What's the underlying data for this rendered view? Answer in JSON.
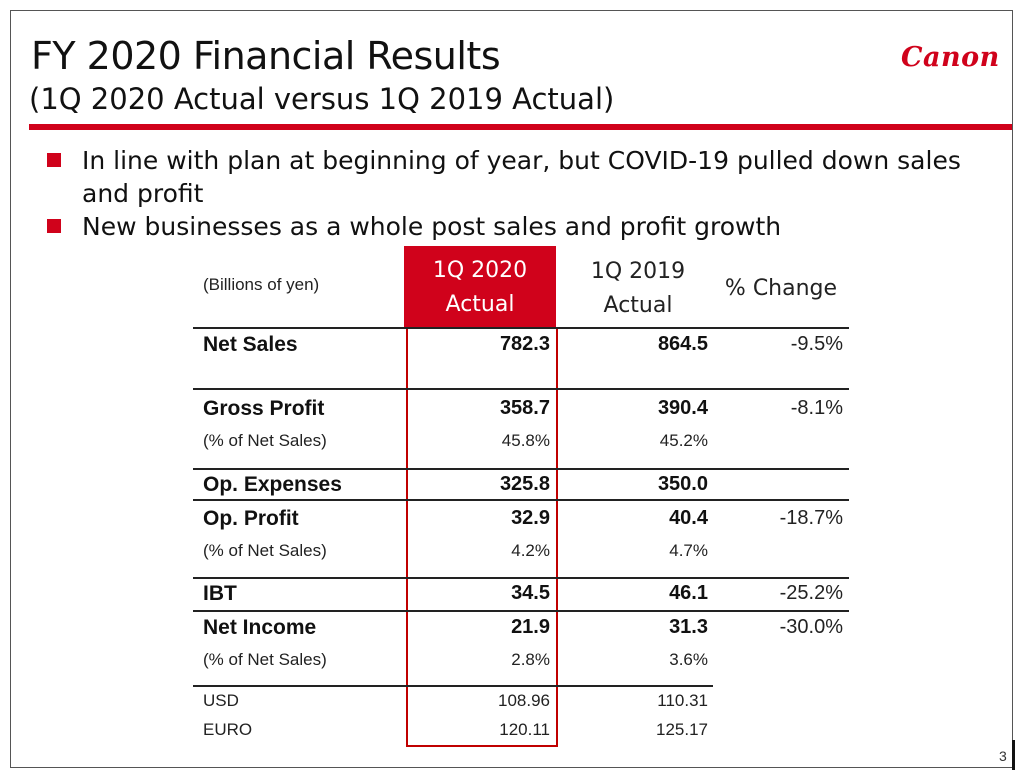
{
  "slide": {
    "title": "FY 2020 Financial Results",
    "subtitle": "(1Q 2020 Actual versus 1Q 2019 Actual)",
    "logo_text": "Canon",
    "accent_color": "#d0021b",
    "page_number": "3"
  },
  "bullets": [
    "In line with plan at beginning of year, but COVID-19 pulled down sales and profit",
    "New businesses as a whole post sales and profit growth"
  ],
  "table": {
    "units": "(Billions of yen)",
    "headers": {
      "col1_line1": "1Q 2020",
      "col1_line2": "Actual",
      "col2_line1": "1Q 2019",
      "col2_line2": "Actual",
      "col3": "% Change"
    },
    "rows": [
      {
        "label": "Net Sales",
        "v1": "782.3",
        "v2": "864.5",
        "v3": "-9.5%"
      },
      {
        "label": "Gross Profit",
        "v1": "358.7",
        "v2": "390.4",
        "v3": "-8.1%"
      },
      {
        "label": "(% of Net Sales)",
        "v1": "45.8%",
        "v2": "45.2%",
        "v3": ""
      },
      {
        "label": "Op. Expenses",
        "v1": "325.8",
        "v2": "350.0",
        "v3": ""
      },
      {
        "label": "Op. Profit",
        "v1": "32.9",
        "v2": "40.4",
        "v3": "-18.7%"
      },
      {
        "label": "(% of Net Sales)",
        "v1": "4.2%",
        "v2": "4.7%",
        "v3": ""
      },
      {
        "label": "IBT",
        "v1": "34.5",
        "v2": "46.1",
        "v3": "-25.2%"
      },
      {
        "label": "Net Income",
        "v1": "21.9",
        "v2": "31.3",
        "v3": "-30.0%"
      },
      {
        "label": "(% of Net Sales)",
        "v1": "2.8%",
        "v2": "3.6%",
        "v3": ""
      },
      {
        "label": "USD",
        "v1": "108.96",
        "v2": "110.31",
        "v3": ""
      },
      {
        "label": "EURO",
        "v1": "120.11",
        "v2": "125.17",
        "v3": ""
      }
    ]
  }
}
